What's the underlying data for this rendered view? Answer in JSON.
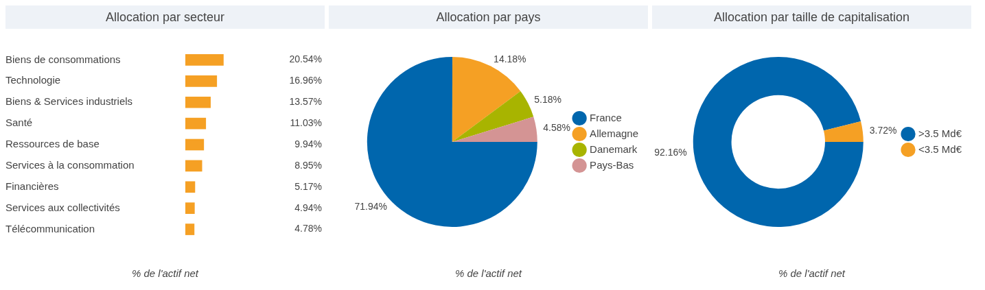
{
  "chart_data": [
    {
      "type": "bar",
      "title": "Allocation par secteur",
      "orientation": "horizontal",
      "categories": [
        "Biens de consommations",
        "Technologie",
        "Biens & Services industriels",
        "Santé",
        "Ressources de base",
        "Services à la consommation",
        "Financières",
        "Services aux collectivités",
        "Télécommunication"
      ],
      "values": [
        20.54,
        16.96,
        13.57,
        11.03,
        9.94,
        8.95,
        5.17,
        4.94,
        4.78
      ],
      "color": "#f5a024",
      "value_labels": [
        "20.54%",
        "16.96%",
        "13.57%",
        "11.03%",
        "9.94%",
        "8.95%",
        "5.17%",
        "4.94%",
        "4.78%"
      ],
      "annotations": [
        "% de l'actif net"
      ]
    },
    {
      "type": "pie",
      "title": "Allocation par pays",
      "categories": [
        "France",
        "Allemagne",
        "Danemark",
        "Pays-Bas"
      ],
      "values": [
        71.94,
        14.18,
        5.18,
        4.58
      ],
      "colors": [
        "#0066ad",
        "#f5a024",
        "#a8b400",
        "#d49494"
      ],
      "value_labels": [
        "71.94%",
        "14.18%",
        "5.18%",
        "4.58%"
      ],
      "legend": "right",
      "annotations": [
        "% de l'actif net"
      ]
    },
    {
      "type": "donut",
      "title": "Allocation par taille de capitalisation",
      "categories": [
        ">3.5 Md€",
        "<3.5 Md€"
      ],
      "values": [
        92.16,
        3.72
      ],
      "colors": [
        "#0066ad",
        "#f5a024"
      ],
      "value_labels": [
        "92.16%",
        "3.72%"
      ],
      "legend": "right",
      "annotations": [
        "% de l'actif net"
      ]
    }
  ]
}
